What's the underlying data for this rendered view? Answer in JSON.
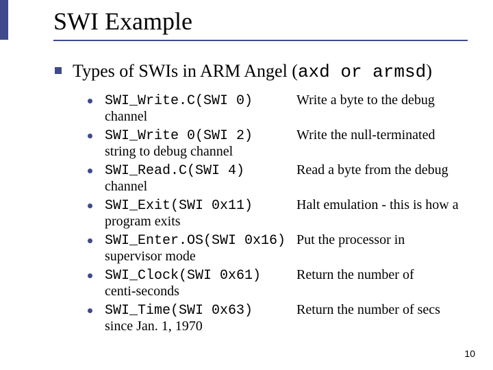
{
  "colors": {
    "accent": "#3f4a8c",
    "background": "#ffffff",
    "text": "#000000"
  },
  "typography": {
    "title_fontsize": 36,
    "level1_fontsize": 26,
    "item_fontsize": 20,
    "pagenum_fontsize": 14,
    "serif_family": "Times New Roman",
    "mono_family": "Courier New"
  },
  "title": "SWI Example",
  "level1_prefix": "Types of SWIs in ARM Angel (",
  "level1_mono": "axd or armsd",
  "level1_suffix": ")",
  "items": [
    {
      "call": "SWI_Write.C(SWI 0)",
      "desc": "Write a byte to the debug",
      "cont": "channel"
    },
    {
      "call": "SWI_Write 0(SWI 2)",
      "desc": "Write the null-terminated",
      "cont": "string to debug channel"
    },
    {
      "call": "SWI_Read.C(SWI 4)",
      "desc": "Read a byte from the debug",
      "cont": "channel"
    },
    {
      "call": "SWI_Exit(SWI 0x11)",
      "desc": "Halt emulation - this is how a",
      "cont": "program exits"
    },
    {
      "call": "SWI_Enter.OS(SWI 0x16)",
      "desc": "Put the processor in",
      "cont": "supervisor mode"
    },
    {
      "call": "SWI_Clock(SWI 0x61)",
      "desc": "Return the number of",
      "cont": "centi-seconds"
    },
    {
      "call": "SWI_Time(SWI 0x63)",
      "desc": "Return the number of secs",
      "cont": "since Jan. 1, 1970"
    }
  ],
  "page_number": "10"
}
